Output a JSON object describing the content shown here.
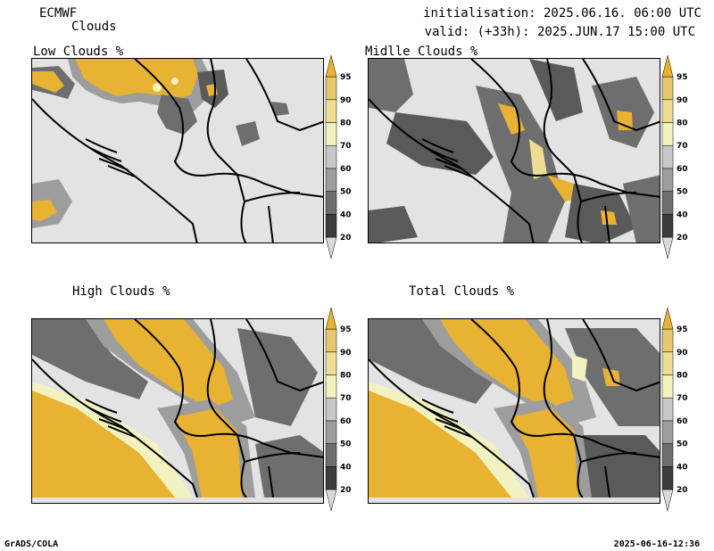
{
  "header": {
    "model": "ECMWF",
    "product": "Clouds",
    "initialisation": "initialisation: 2025.06.16. 06:00 UTC",
    "valid": "valid: (+33h): 2025.JUN.17 15:00 UTC"
  },
  "panels": [
    {
      "title": "Low Clouds %"
    },
    {
      "title": "Midlle Clouds %"
    },
    {
      "title": "High Clouds %"
    },
    {
      "title": "Total Clouds %"
    }
  ],
  "colorbar": {
    "levels": [
      "20",
      "40",
      "50",
      "60",
      "70",
      "80",
      "90",
      "95"
    ],
    "colors": [
      "#d9d9d9",
      "#3c3c3c",
      "#6e6e6e",
      "#9d9d9d",
      "#c8c8c8",
      "#f2f2c0",
      "#efdc95",
      "#e6c870",
      "#e8b232"
    ]
  },
  "colors": {
    "orange": "#e8b232",
    "light_orange": "#efdc95",
    "pale_yellow": "#f2f2c0",
    "light_gray": "#e3e3e3",
    "gray": "#9d9d9d",
    "dark_gray": "#5a5a5a"
  },
  "footer": {
    "left": "GrADS/COLA",
    "right": "2025-06-16-12:36"
  }
}
